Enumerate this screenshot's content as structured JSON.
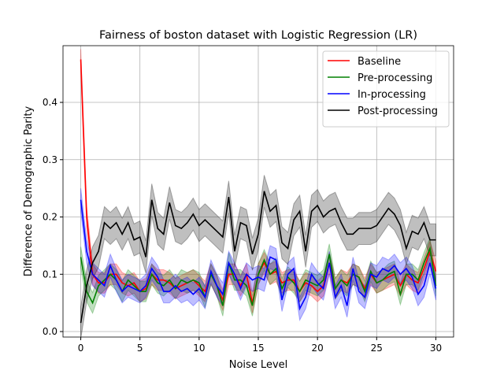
{
  "chart_data": {
    "type": "line",
    "title": "Fairness of boston dataset with Logistic Regression (LR)",
    "xlabel": "Noise Level",
    "ylabel": "Difference of Demographic Parity",
    "xlim": [
      -1.5,
      31.5
    ],
    "ylim": [
      -0.0096,
      0.499
    ],
    "xticks": [
      0,
      5,
      10,
      15,
      20,
      25,
      30
    ],
    "yticks": [
      {
        "value": 0,
        "label": "0.0"
      },
      0.1,
      0.2,
      0.3,
      0.4
    ],
    "grid": true,
    "legend_loc": "upper right",
    "x": [
      0,
      0.5,
      1,
      1.5,
      2,
      2.5,
      3,
      3.5,
      4,
      4.5,
      5,
      5.5,
      6,
      6.5,
      7,
      7.5,
      8,
      8.5,
      9,
      9.5,
      10,
      10.5,
      11,
      11.5,
      12,
      12.5,
      13,
      13.5,
      14,
      14.5,
      15,
      15.5,
      16,
      16.5,
      17,
      17.5,
      18,
      18.5,
      19,
      19.5,
      20,
      20.5,
      21,
      21.5,
      22,
      22.5,
      23,
      23.5,
      24,
      24.5,
      25,
      25.5,
      26,
      26.5,
      27,
      27.5,
      28,
      28.5,
      29,
      29.5,
      30
    ],
    "series": [
      {
        "name": "Baseline",
        "color": "#ff0000",
        "error": 0.018,
        "values": [
          0.475,
          0.2,
          0.1,
          0.085,
          0.085,
          0.1,
          0.1,
          0.085,
          0.08,
          0.085,
          0.07,
          0.075,
          0.1,
          0.09,
          0.09,
          0.085,
          0.075,
          0.08,
          0.085,
          0.09,
          0.08,
          0.07,
          0.1,
          0.08,
          0.055,
          0.1,
          0.1,
          0.08,
          0.1,
          0.05,
          0.1,
          0.12,
          0.1,
          0.105,
          0.085,
          0.09,
          0.09,
          0.07,
          0.085,
          0.08,
          0.07,
          0.08,
          0.12,
          0.075,
          0.09,
          0.085,
          0.1,
          0.095,
          0.075,
          0.1,
          0.085,
          0.09,
          0.095,
          0.1,
          0.08,
          0.1,
          0.09,
          0.085,
          0.11,
          0.14,
          0.105
        ]
      },
      {
        "name": "Pre-processing",
        "color": "#008000",
        "error": 0.018,
        "values": [
          0.13,
          0.07,
          0.05,
          0.08,
          0.09,
          0.1,
          0.09,
          0.07,
          0.09,
          0.08,
          0.07,
          0.07,
          0.1,
          0.085,
          0.08,
          0.09,
          0.075,
          0.09,
          0.085,
          0.09,
          0.085,
          0.06,
          0.1,
          0.08,
          0.045,
          0.12,
          0.09,
          0.09,
          0.08,
          0.045,
          0.1,
          0.125,
          0.1,
          0.11,
          0.075,
          0.095,
          0.085,
          0.07,
          0.09,
          0.085,
          0.08,
          0.09,
          0.135,
          0.075,
          0.09,
          0.08,
          0.1,
          0.095,
          0.07,
          0.105,
          0.085,
          0.09,
          0.1,
          0.105,
          0.065,
          0.1,
          0.1,
          0.09,
          0.12,
          0.145,
          0.08
        ]
      },
      {
        "name": "In-processing",
        "color": "#0000ff",
        "error": 0.02,
        "values": [
          0.23,
          0.14,
          0.1,
          0.09,
          0.08,
          0.115,
          0.09,
          0.07,
          0.08,
          0.075,
          0.07,
          0.08,
          0.11,
          0.095,
          0.07,
          0.07,
          0.08,
          0.07,
          0.075,
          0.065,
          0.075,
          0.06,
          0.105,
          0.08,
          0.065,
          0.12,
          0.1,
          0.075,
          0.1,
          0.09,
          0.095,
          0.09,
          0.13,
          0.125,
          0.055,
          0.1,
          0.11,
          0.04,
          0.06,
          0.1,
          0.085,
          0.075,
          0.12,
          0.06,
          0.08,
          0.045,
          0.11,
          0.07,
          0.06,
          0.1,
          0.095,
          0.11,
          0.105,
          0.115,
          0.1,
          0.11,
          0.095,
          0.065,
          0.08,
          0.12,
          0.075
        ]
      },
      {
        "name": "Post-processing",
        "color": "#000000",
        "error": 0.028,
        "values": [
          0.015,
          0.08,
          0.12,
          0.14,
          0.19,
          0.18,
          0.19,
          0.17,
          0.19,
          0.16,
          0.165,
          0.13,
          0.23,
          0.18,
          0.17,
          0.225,
          0.185,
          0.18,
          0.19,
          0.205,
          0.185,
          0.195,
          0.185,
          0.175,
          0.165,
          0.235,
          0.14,
          0.19,
          0.185,
          0.135,
          0.17,
          0.245,
          0.21,
          0.22,
          0.155,
          0.145,
          0.195,
          0.21,
          0.14,
          0.21,
          0.22,
          0.2,
          0.21,
          0.215,
          0.19,
          0.17,
          0.17,
          0.18,
          0.18,
          0.18,
          0.185,
          0.2,
          0.215,
          0.205,
          0.185,
          0.145,
          0.175,
          0.17,
          0.19,
          0.16,
          0.16
        ]
      }
    ]
  }
}
